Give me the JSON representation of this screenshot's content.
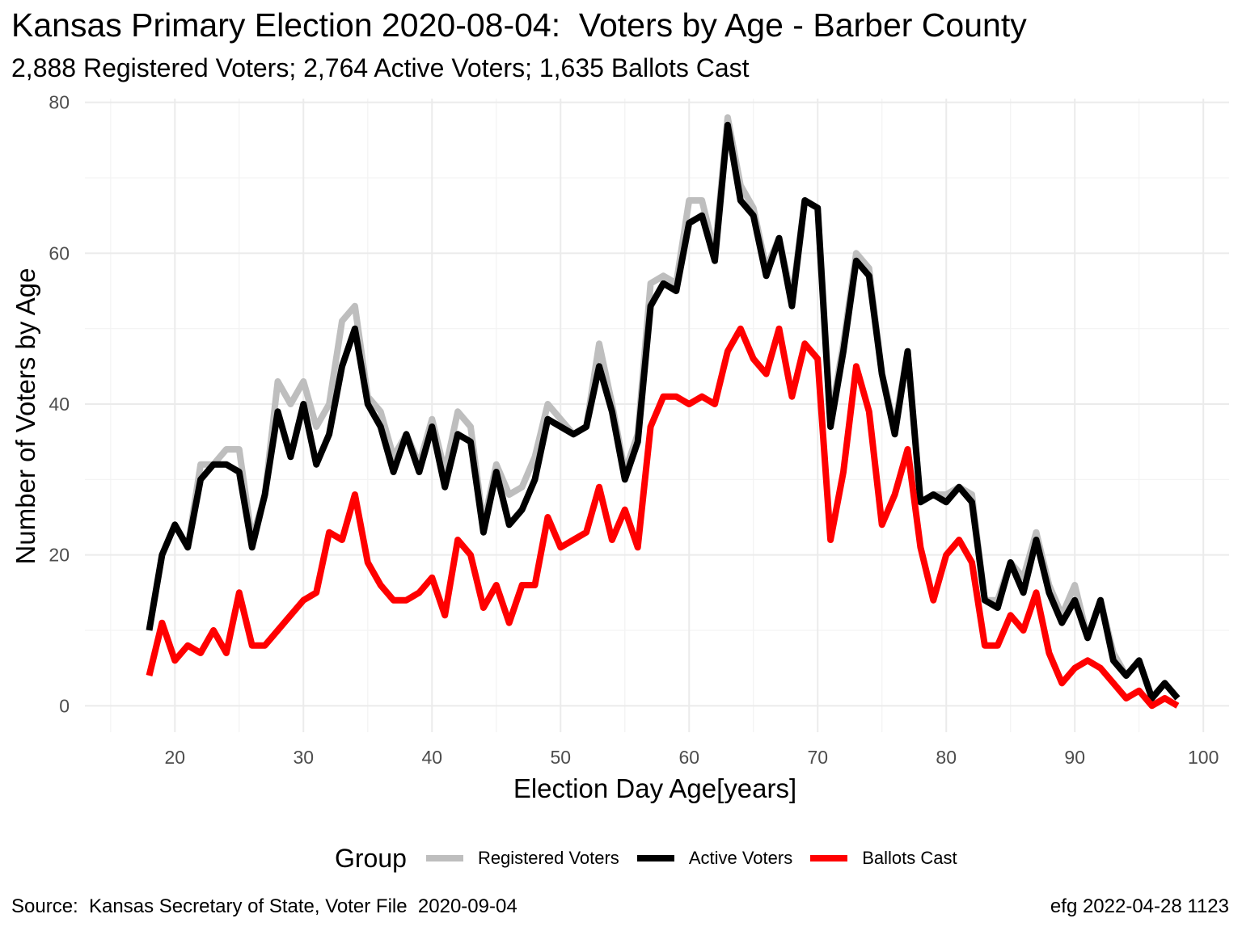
{
  "title": "Kansas Primary Election 2020-08-04:  Voters by Age - Barber County",
  "subtitle": "2,888 Registered Voters; 2,764 Active Voters; 1,635 Ballots Cast",
  "caption_left": "Source:  Kansas Secretary of State, Voter File  2020-09-04",
  "caption_right": "efg 2022-04-28 1123",
  "legend": {
    "title": "Group",
    "items": [
      {
        "label": "Registered Voters",
        "color": "#bebebe"
      },
      {
        "label": "Active Voters",
        "color": "#000000"
      },
      {
        "label": "Ballots Cast",
        "color": "#ff0000"
      }
    ]
  },
  "chart_data": {
    "type": "line",
    "xlabel": "Election Day Age[years]",
    "ylabel": "Number of Voters by Age",
    "xlim": [
      13,
      102
    ],
    "ylim": [
      -3.5,
      80.5
    ],
    "xticks": [
      20,
      30,
      40,
      50,
      60,
      70,
      80,
      90,
      100
    ],
    "yticks": [
      0,
      20,
      40,
      60,
      80
    ],
    "grid": true,
    "legend_position": "bottom",
    "x": [
      18,
      19,
      20,
      21,
      22,
      23,
      24,
      25,
      26,
      27,
      28,
      29,
      30,
      31,
      32,
      33,
      34,
      35,
      36,
      37,
      38,
      39,
      40,
      41,
      42,
      43,
      44,
      45,
      46,
      47,
      48,
      49,
      50,
      51,
      52,
      53,
      54,
      55,
      56,
      57,
      58,
      59,
      60,
      61,
      62,
      63,
      64,
      65,
      66,
      67,
      68,
      69,
      70,
      71,
      72,
      73,
      74,
      75,
      76,
      77,
      78,
      79,
      80,
      81,
      82,
      83,
      84,
      85,
      86,
      87,
      88,
      89,
      90,
      91,
      92,
      93,
      94,
      95,
      96,
      97,
      98
    ],
    "series": [
      {
        "name": "Registered Voters",
        "color": "#bebebe",
        "values": [
          10,
          20,
          24,
          21,
          32,
          32,
          34,
          34,
          22,
          28,
          43,
          40,
          43,
          37,
          40,
          51,
          53,
          41,
          39,
          33,
          36,
          32,
          38,
          31,
          39,
          37,
          24,
          32,
          28,
          29,
          33,
          40,
          38,
          36,
          37,
          48,
          40,
          31,
          36,
          56,
          57,
          56,
          67,
          67,
          60,
          78,
          69,
          66,
          58,
          62,
          54,
          67,
          66,
          38,
          48,
          60,
          58,
          44,
          37,
          47,
          27,
          28,
          28,
          29,
          28,
          14,
          14,
          19,
          17,
          23,
          16,
          12,
          16,
          9,
          14,
          7,
          4,
          6,
          1,
          3,
          1
        ]
      },
      {
        "name": "Active Voters",
        "color": "#000000",
        "values": [
          10,
          20,
          24,
          21,
          30,
          32,
          32,
          31,
          21,
          28,
          39,
          33,
          40,
          32,
          36,
          45,
          50,
          40,
          37,
          31,
          36,
          31,
          37,
          29,
          36,
          35,
          23,
          31,
          24,
          26,
          30,
          38,
          37,
          36,
          37,
          45,
          39,
          30,
          35,
          53,
          56,
          55,
          64,
          65,
          59,
          77,
          67,
          65,
          57,
          62,
          53,
          67,
          66,
          37,
          47,
          59,
          57,
          44,
          36,
          47,
          27,
          28,
          27,
          29,
          27,
          14,
          13,
          19,
          15,
          22,
          15,
          11,
          14,
          9,
          14,
          6,
          4,
          6,
          1,
          3,
          1
        ]
      },
      {
        "name": "Ballots Cast",
        "color": "#ff0000",
        "values": [
          4,
          11,
          6,
          8,
          7,
          10,
          7,
          15,
          8,
          8,
          10,
          12,
          14,
          15,
          23,
          22,
          28,
          19,
          16,
          14,
          14,
          15,
          17,
          12,
          22,
          20,
          13,
          16,
          11,
          16,
          16,
          25,
          21,
          22,
          23,
          29,
          22,
          26,
          21,
          37,
          41,
          41,
          40,
          41,
          40,
          47,
          50,
          46,
          44,
          50,
          41,
          48,
          46,
          22,
          31,
          45,
          39,
          24,
          28,
          34,
          21,
          14,
          20,
          22,
          19,
          8,
          8,
          12,
          10,
          15,
          7,
          3,
          5,
          6,
          5,
          3,
          1,
          2,
          0,
          1,
          0
        ]
      }
    ]
  }
}
